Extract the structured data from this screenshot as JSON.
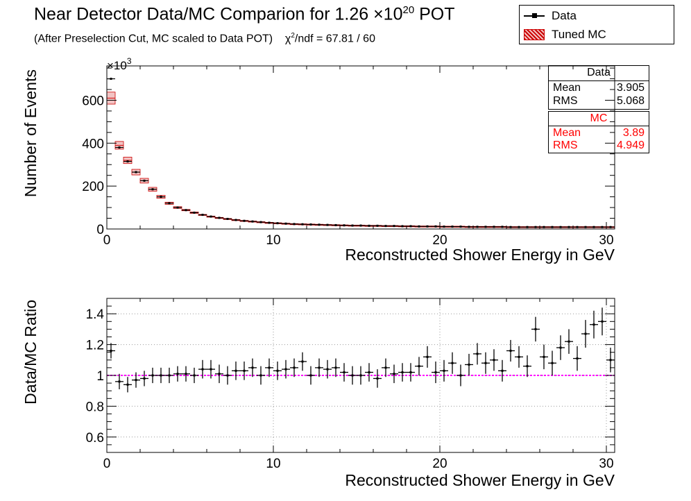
{
  "title": {
    "main": "Near Detector Data/MC Comparion for 1.26 ×10",
    "exponent": "20",
    "suffix": " POT"
  },
  "subtitle": {
    "text": "(After Preselection Cut, MC scaled to Data POT)",
    "chi_prefix": "χ",
    "chi_sup": "2",
    "chi_text": "/ndf = 67.81 / 60"
  },
  "legend": {
    "data_label": "Data",
    "mc_label": "Tuned MC"
  },
  "stats_data": {
    "header": "Data",
    "mean_label": "Mean",
    "mean_value": "3.905",
    "rms_label": "RMS",
    "rms_value": "5.068"
  },
  "stats_mc": {
    "header": "MC",
    "mean_label": "Mean",
    "mean_value": "3.89",
    "rms_label": "RMS",
    "rms_value": "4.949"
  },
  "colors": {
    "data": "#000000",
    "mc": "#cc0000",
    "mc_fill": "#f2c4c4",
    "ratio_line": "#ff00ff",
    "grid": "#999999"
  },
  "chart_data": [
    {
      "type": "bar",
      "name": "top-spectrum",
      "xlabel": "Reconstructed Shower Energy in GeV",
      "ylabel": "Number of Events",
      "y_multiplier_label": "×10",
      "y_multiplier_exp": "3",
      "xlim": [
        0,
        30.5
      ],
      "ylim": [
        0,
        760
      ],
      "xticks": [
        0,
        10,
        20,
        30
      ],
      "yticks": [
        0,
        200,
        400,
        600
      ],
      "grid": false,
      "x": [
        0.25,
        0.75,
        1.25,
        1.75,
        2.25,
        2.75,
        3.25,
        3.75,
        4.25,
        4.75,
        5.25,
        5.75,
        6.25,
        6.75,
        7.25,
        7.75,
        8.25,
        8.75,
        9.25,
        9.75,
        10.25,
        10.75,
        11.25,
        11.75,
        12.25,
        12.75,
        13.25,
        13.75,
        14.25,
        14.75,
        15.25,
        15.75,
        16.25,
        16.75,
        17.25,
        17.75,
        18.25,
        18.75,
        19.25,
        19.75,
        20.25,
        20.75,
        21.25,
        21.75,
        22.25,
        22.75,
        23.25,
        23.75,
        24.25,
        24.75,
        25.25,
        25.75,
        26.25,
        26.75,
        27.25,
        27.75,
        28.25,
        28.75,
        29.25,
        29.75,
        30.25
      ],
      "series": [
        {
          "name": "Data",
          "values": [
            700,
            380,
            315,
            265,
            225,
            185,
            150,
            120,
            100,
            88,
            76,
            66,
            58,
            52,
            47,
            42,
            38,
            35,
            32,
            29,
            27,
            25,
            23,
            22,
            21,
            20,
            19,
            18,
            17,
            16,
            16,
            15,
            15,
            14,
            14,
            13,
            13,
            12,
            12,
            12,
            11,
            11,
            11,
            10,
            10,
            10,
            10,
            10,
            9,
            9,
            9,
            9,
            9,
            9,
            9,
            9,
            9,
            9,
            9,
            9,
            9
          ]
        },
        {
          "name": "Tuned MC",
          "values": [
            610,
            390,
            320,
            265,
            225,
            185,
            150,
            120,
            100,
            88,
            76,
            66,
            58,
            52,
            47,
            42,
            38,
            35,
            32,
            29,
            27,
            25,
            23,
            22,
            21,
            20,
            19,
            18,
            17,
            16,
            16,
            15,
            15,
            14,
            14,
            13,
            13,
            12,
            12,
            12,
            11,
            11,
            11,
            10,
            10,
            10,
            10,
            10,
            9,
            9,
            9,
            9,
            9,
            9,
            9,
            9,
            9,
            9,
            9,
            9,
            9
          ],
          "errors": [
            28,
            18,
            15,
            13,
            11,
            9,
            7,
            5,
            4,
            3,
            3,
            2,
            2,
            2,
            2,
            2,
            2,
            2,
            2,
            2,
            2,
            2,
            2,
            2,
            2,
            2,
            2,
            2,
            2,
            2,
            2,
            2,
            2,
            2,
            2,
            2,
            2,
            2,
            2,
            2,
            2,
            2,
            2,
            2,
            2,
            2,
            2,
            2,
            2,
            2,
            2,
            2,
            2,
            2,
            2,
            2,
            2,
            2,
            2,
            2,
            2
          ]
        }
      ]
    },
    {
      "type": "scatter",
      "name": "ratio",
      "xlabel": "Reconstructed Shower Energy in GeV",
      "ylabel": "Data/MC Ratio",
      "xlim": [
        0,
        30.5
      ],
      "ylim": [
        0.5,
        1.5
      ],
      "xticks": [
        0,
        10,
        20,
        30
      ],
      "yticks": [
        0.6,
        0.8,
        1,
        1.2,
        1.4
      ],
      "ytick_labels": [
        "0.6",
        "0.8",
        "1",
        "1.2",
        "1.4"
      ],
      "grid": true,
      "reference_line": 1.0,
      "x": [
        0.25,
        0.75,
        1.25,
        1.75,
        2.25,
        2.75,
        3.25,
        3.75,
        4.25,
        4.75,
        5.25,
        5.75,
        6.25,
        6.75,
        7.25,
        7.75,
        8.25,
        8.75,
        9.25,
        9.75,
        10.25,
        10.75,
        11.25,
        11.75,
        12.25,
        12.75,
        13.25,
        13.75,
        14.25,
        14.75,
        15.25,
        15.75,
        16.25,
        16.75,
        17.25,
        17.75,
        18.25,
        18.75,
        19.25,
        19.75,
        20.25,
        20.75,
        21.25,
        21.75,
        22.25,
        22.75,
        23.25,
        23.75,
        24.25,
        24.75,
        25.25,
        25.75,
        26.25,
        26.75,
        27.25,
        27.75,
        28.25,
        28.75,
        29.25,
        29.75,
        30.25
      ],
      "series": [
        {
          "name": "Data",
          "values": [
            1.16,
            0.96,
            0.94,
            0.97,
            0.98,
            1.0,
            1.0,
            1.0,
            1.01,
            1.01,
            1.0,
            1.04,
            1.04,
            1.01,
            1.0,
            1.03,
            1.03,
            1.05,
            1.0,
            1.05,
            1.03,
            1.04,
            1.05,
            1.09,
            1.0,
            1.05,
            1.04,
            1.05,
            1.02,
            1.0,
            1.0,
            1.02,
            0.98,
            1.05,
            1.01,
            1.02,
            1.02,
            1.06,
            1.12,
            1.02,
            1.03,
            1.08,
            1.0,
            1.07,
            1.14,
            1.08,
            1.1,
            1.03,
            1.16,
            1.12,
            1.06,
            1.3,
            1.12,
            1.08,
            1.18,
            1.22,
            1.11,
            1.27,
            1.33,
            1.35,
            1.1
          ],
          "errors": [
            0.05,
            0.05,
            0.05,
            0.05,
            0.05,
            0.05,
            0.05,
            0.05,
            0.05,
            0.05,
            0.05,
            0.06,
            0.06,
            0.06,
            0.06,
            0.06,
            0.06,
            0.06,
            0.06,
            0.06,
            0.06,
            0.06,
            0.06,
            0.06,
            0.06,
            0.06,
            0.06,
            0.06,
            0.06,
            0.06,
            0.06,
            0.06,
            0.06,
            0.06,
            0.06,
            0.06,
            0.06,
            0.06,
            0.07,
            0.07,
            0.07,
            0.07,
            0.07,
            0.07,
            0.07,
            0.07,
            0.07,
            0.07,
            0.07,
            0.07,
            0.07,
            0.08,
            0.08,
            0.08,
            0.08,
            0.08,
            0.08,
            0.09,
            0.09,
            0.09,
            0.08
          ]
        }
      ]
    }
  ]
}
